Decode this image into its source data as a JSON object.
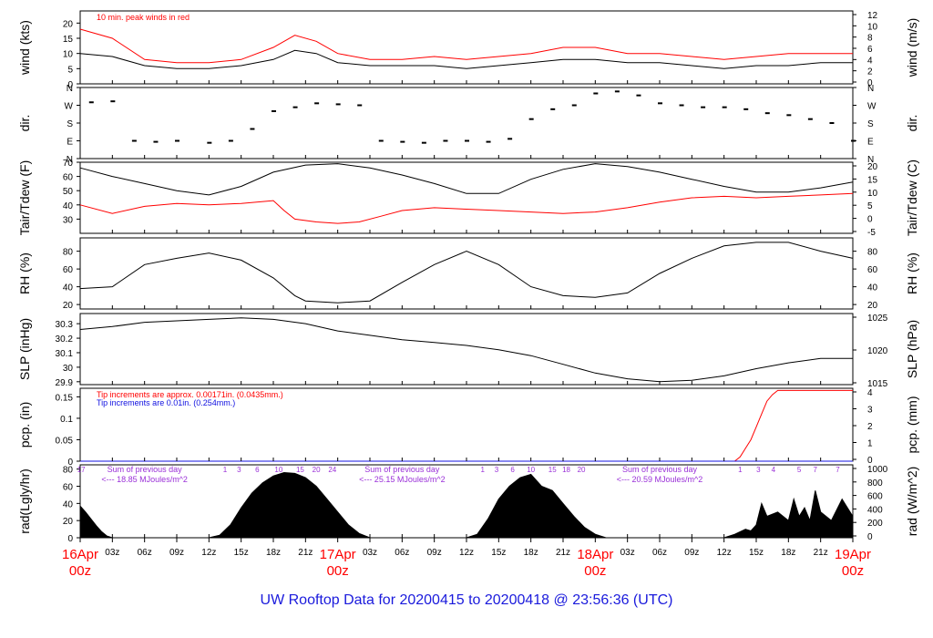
{
  "colors": {
    "red": "#ff0000",
    "blue": "#1010e0",
    "purple": "#9a30d8",
    "black": "#000000",
    "footer": "#1a1adc"
  },
  "footer_title": "UW Rooftop Data for 20200415  to  20200418 @ 23:56:36  (UTC)",
  "chart_data": [
    {
      "type": "line",
      "panel": "wind",
      "ylabel_left": "wind (kts)",
      "ylabel_right": "wind (m/s)",
      "annotation": "10 min. peak winds in red",
      "ylim": [
        0,
        24
      ],
      "yticks_left": [
        0,
        5,
        10,
        15,
        20
      ],
      "yticks_right": [
        0,
        2,
        4,
        6,
        8,
        10,
        12
      ],
      "series": [
        {
          "color": "black",
          "x_hours": [
            0,
            3,
            6,
            9,
            12,
            15,
            18,
            20,
            22,
            24,
            27,
            30,
            33,
            36,
            39,
            42,
            45,
            48,
            51,
            54,
            57,
            60,
            63,
            66,
            69,
            72
          ],
          "values": [
            10,
            9,
            6,
            5,
            5,
            6,
            8,
            11,
            10,
            7,
            6,
            6,
            6,
            5,
            6,
            7,
            8,
            8,
            7,
            7,
            6,
            5,
            6,
            6,
            7,
            7
          ]
        },
        {
          "color": "red",
          "x_hours": [
            0,
            3,
            6,
            9,
            12,
            15,
            18,
            20,
            22,
            24,
            27,
            30,
            33,
            36,
            39,
            42,
            45,
            48,
            51,
            54,
            57,
            60,
            63,
            66,
            69,
            72
          ],
          "values": [
            18,
            15,
            8,
            7,
            7,
            8,
            12,
            16,
            14,
            10,
            8,
            8,
            9,
            8,
            9,
            10,
            12,
            12,
            10,
            10,
            9,
            8,
            9,
            10,
            10,
            10
          ]
        }
      ]
    },
    {
      "type": "scatter",
      "panel": "direction",
      "ylabel_left": "dir.",
      "ylabel_right": "dir.",
      "yticks_left": [
        "N",
        "E",
        "S",
        "W",
        "N"
      ],
      "ylim": [
        0,
        360
      ],
      "x_hours": [
        1,
        3,
        5,
        7,
        9,
        12,
        14,
        16,
        18,
        20,
        22,
        24,
        26,
        28,
        30,
        32,
        34,
        36,
        38,
        40,
        42,
        44,
        46,
        48,
        50,
        52,
        54,
        56,
        58,
        60,
        62,
        64,
        66,
        68,
        70,
        72
      ],
      "values": [
        285,
        290,
        90,
        85,
        90,
        80,
        90,
        150,
        240,
        260,
        280,
        275,
        270,
        90,
        85,
        80,
        90,
        90,
        85,
        100,
        200,
        250,
        270,
        330,
        340,
        320,
        280,
        270,
        260,
        260,
        250,
        230,
        220,
        200,
        180,
        90
      ]
    },
    {
      "type": "line",
      "panel": "temperature",
      "ylabel_left": "Tair/Tdew (F)",
      "ylabel_right": "Tair/Tdew (C)",
      "ylim": [
        20,
        70
      ],
      "yticks_left": [
        30,
        40,
        50,
        60,
        70
      ],
      "yticks_right": [
        -5,
        0,
        5,
        10,
        15,
        20
      ],
      "series": [
        {
          "color": "black",
          "x_hours": [
            0,
            3,
            6,
            9,
            12,
            15,
            18,
            21,
            24,
            27,
            30,
            33,
            36,
            39,
            42,
            45,
            48,
            51,
            54,
            57,
            60,
            63,
            66,
            69,
            72
          ],
          "values": [
            66,
            60,
            55,
            50,
            47,
            53,
            63,
            68,
            69,
            66,
            61,
            55,
            48,
            48,
            58,
            65,
            69,
            67,
            63,
            58,
            53,
            49,
            49,
            52,
            56
          ]
        },
        {
          "color": "red",
          "x_hours": [
            0,
            3,
            6,
            9,
            12,
            15,
            18,
            19,
            20,
            22,
            24,
            26,
            28,
            30,
            33,
            36,
            39,
            42,
            45,
            48,
            51,
            54,
            57,
            60,
            63,
            66,
            69,
            72
          ],
          "values": [
            40,
            34,
            39,
            41,
            40,
            41,
            43,
            36,
            30,
            28,
            27,
            28,
            32,
            36,
            38,
            37,
            36,
            35,
            34,
            35,
            38,
            42,
            45,
            46,
            45,
            46,
            47,
            48
          ]
        }
      ]
    },
    {
      "type": "line",
      "panel": "relative-humidity",
      "ylabel_left": "RH (%)",
      "ylabel_right": "RH (%)",
      "ylim": [
        15,
        95
      ],
      "yticks_left": [
        20,
        40,
        60,
        80
      ],
      "series": [
        {
          "color": "black",
          "x_hours": [
            0,
            3,
            6,
            9,
            12,
            15,
            18,
            20,
            21,
            24,
            27,
            30,
            33,
            36,
            39,
            42,
            45,
            48,
            51,
            54,
            57,
            60,
            63,
            66,
            69,
            72
          ],
          "values": [
            38,
            40,
            65,
            72,
            78,
            70,
            50,
            30,
            24,
            22,
            24,
            45,
            65,
            80,
            65,
            40,
            30,
            28,
            33,
            55,
            72,
            86,
            90,
            90,
            80,
            72
          ]
        }
      ]
    },
    {
      "type": "line",
      "panel": "sea-level-pressure",
      "ylabel_left": "SLP (inHg)",
      "ylabel_right": "SLP (hPa)",
      "ylim": [
        29.88,
        30.37
      ],
      "yticks_left": [
        29.9,
        30.0,
        30.1,
        30.2,
        30.3
      ],
      "yticks_right": [
        1015,
        1020,
        1025
      ],
      "series": [
        {
          "color": "black",
          "x_hours": [
            0,
            3,
            6,
            9,
            12,
            15,
            18,
            21,
            24,
            27,
            30,
            33,
            36,
            39,
            42,
            45,
            48,
            51,
            54,
            57,
            60,
            63,
            66,
            69,
            72
          ],
          "values": [
            30.26,
            30.28,
            30.31,
            30.32,
            30.33,
            30.34,
            30.33,
            30.3,
            30.25,
            30.22,
            30.19,
            30.17,
            30.15,
            30.12,
            30.08,
            30.02,
            29.96,
            29.92,
            29.9,
            29.91,
            29.94,
            29.99,
            30.03,
            30.06,
            30.06
          ]
        }
      ]
    },
    {
      "type": "line",
      "panel": "precipitation",
      "ylabel_left": "pcp. (in)",
      "ylabel_right": "pcp. (mm)",
      "annotation_red": "Tip increments are approx. 0.00171in. (0.0435mm.)",
      "annotation_blue": "Tip increments are 0.01in. (0.254mm.)",
      "ylim": [
        0,
        0.17
      ],
      "yticks_left": [
        0.0,
        0.05,
        0.1,
        0.15
      ],
      "yticks_right": [
        0,
        1,
        2,
        3,
        4
      ],
      "series": [
        {
          "color": "red",
          "x_hours": [
            0,
            61,
            61.5,
            62,
            62.5,
            63,
            63.5,
            64,
            64.5,
            65,
            72
          ],
          "values": [
            0,
            0,
            0.01,
            0.03,
            0.05,
            0.08,
            0.11,
            0.14,
            0.155,
            0.165,
            0.165
          ]
        },
        {
          "color": "blue",
          "x_hours": [
            0,
            72
          ],
          "values": [
            0,
            0
          ]
        }
      ]
    },
    {
      "type": "area",
      "panel": "radiation",
      "ylabel_left": "rad(Lgly/hr)",
      "ylabel_right": "rad (W/m^2)",
      "ylim": [
        0,
        85
      ],
      "yticks_left": [
        0,
        20,
        40,
        60,
        80
      ],
      "yticks_right": [
        0,
        200,
        400,
        600,
        800,
        1000
      ],
      "daily_totals": [
        "<--- 18.85 MJoules/m^2",
        "<--- 25.15 MJoules/m^2",
        "<--- 20.59 MJoules/m^2"
      ],
      "daily_total_label": "Sum of previous day",
      "hour_marks": [
        {
          "x_hours": 0.1,
          "label": "17"
        },
        {
          "x_hours": 13.5,
          "label": "1"
        },
        {
          "x_hours": 14.8,
          "label": "3"
        },
        {
          "x_hours": 16.5,
          "label": "6"
        },
        {
          "x_hours": 18.5,
          "label": "10"
        },
        {
          "x_hours": 20.5,
          "label": "15"
        },
        {
          "x_hours": 22.0,
          "label": "20"
        },
        {
          "x_hours": 23.5,
          "label": "24"
        },
        {
          "x_hours": 37.5,
          "label": "1"
        },
        {
          "x_hours": 38.8,
          "label": "3"
        },
        {
          "x_hours": 40.3,
          "label": "6"
        },
        {
          "x_hours": 42.0,
          "label": "10"
        },
        {
          "x_hours": 44.0,
          "label": "15"
        },
        {
          "x_hours": 45.3,
          "label": "18"
        },
        {
          "x_hours": 46.7,
          "label": "20"
        },
        {
          "x_hours": 61.5,
          "label": "1"
        },
        {
          "x_hours": 63.2,
          "label": "3"
        },
        {
          "x_hours": 64.6,
          "label": "4"
        },
        {
          "x_hours": 67.0,
          "label": "5"
        },
        {
          "x_hours": 68.5,
          "label": "7"
        },
        {
          "x_hours": 70.6,
          "label": "7"
        }
      ],
      "series": [
        {
          "color": "black",
          "x_hours": [
            0,
            0.5,
            1,
            1.5,
            2,
            2.5,
            3,
            12,
            13,
            14,
            15,
            16,
            17,
            18,
            19,
            20,
            21,
            22,
            23,
            24,
            25,
            26,
            27,
            36,
            37,
            38,
            39,
            40,
            41,
            42,
            43,
            44,
            45,
            46,
            47,
            48,
            49,
            50,
            51,
            60,
            61,
            62,
            62.5,
            63,
            63.5,
            64,
            65,
            66,
            66.5,
            67,
            67.5,
            68,
            68.5,
            69,
            70,
            71,
            72
          ],
          "values": [
            37,
            30,
            22,
            14,
            7,
            2,
            0,
            0,
            3,
            15,
            35,
            52,
            64,
            72,
            76,
            75,
            70,
            60,
            45,
            30,
            15,
            5,
            0,
            0,
            4,
            22,
            45,
            60,
            70,
            74,
            60,
            55,
            40,
            25,
            12,
            4,
            0,
            0,
            0,
            0,
            4,
            10,
            8,
            15,
            40,
            25,
            30,
            20,
            45,
            25,
            35,
            20,
            55,
            30,
            20,
            45,
            25
          ]
        }
      ]
    }
  ],
  "x_axis": {
    "range_hours": [
      0,
      72
    ],
    "ticks": [
      {
        "x_hours": 0,
        "label": ""
      },
      {
        "x_hours": 3,
        "label": "03z"
      },
      {
        "x_hours": 6,
        "label": "06z"
      },
      {
        "x_hours": 9,
        "label": "09z"
      },
      {
        "x_hours": 12,
        "label": "12z"
      },
      {
        "x_hours": 15,
        "label": "15z"
      },
      {
        "x_hours": 18,
        "label": "18z"
      },
      {
        "x_hours": 21,
        "label": "21z"
      },
      {
        "x_hours": 24,
        "label": ""
      },
      {
        "x_hours": 27,
        "label": "03z"
      },
      {
        "x_hours": 30,
        "label": "06z"
      },
      {
        "x_hours": 33,
        "label": "09z"
      },
      {
        "x_hours": 36,
        "label": "12z"
      },
      {
        "x_hours": 39,
        "label": "15z"
      },
      {
        "x_hours": 42,
        "label": "18z"
      },
      {
        "x_hours": 45,
        "label": "21z"
      },
      {
        "x_hours": 48,
        "label": ""
      },
      {
        "x_hours": 51,
        "label": "03z"
      },
      {
        "x_hours": 54,
        "label": "06z"
      },
      {
        "x_hours": 57,
        "label": "09z"
      },
      {
        "x_hours": 60,
        "label": "12z"
      },
      {
        "x_hours": 63,
        "label": "15z"
      },
      {
        "x_hours": 66,
        "label": "18z"
      },
      {
        "x_hours": 69,
        "label": "21z"
      },
      {
        "x_hours": 72,
        "label": ""
      }
    ],
    "day_labels": [
      {
        "x_hours": 0,
        "date": "16Apr",
        "hour": "00z"
      },
      {
        "x_hours": 24,
        "date": "17Apr",
        "hour": "00z"
      },
      {
        "x_hours": 48,
        "date": "18Apr",
        "hour": "00z"
      },
      {
        "x_hours": 72,
        "date": "19Apr",
        "hour": "00z"
      }
    ]
  }
}
